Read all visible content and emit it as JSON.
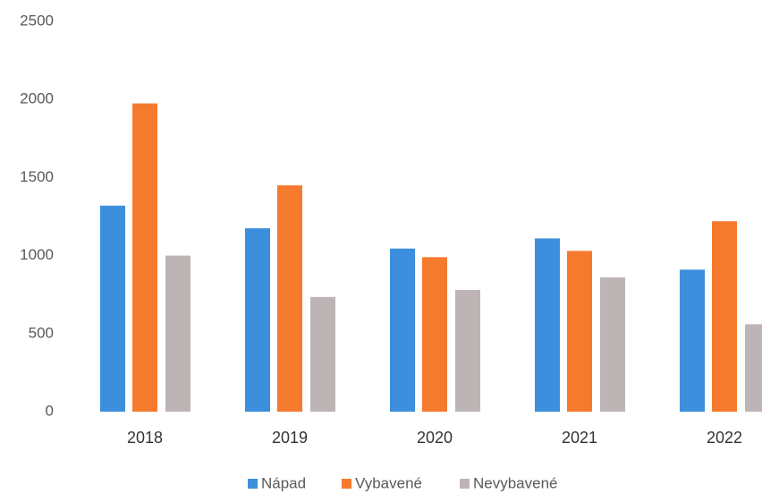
{
  "chart_data": {
    "type": "bar",
    "categories": [
      "2018",
      "2019",
      "2020",
      "2021",
      "2022"
    ],
    "series": [
      {
        "name": "Nápad",
        "color": "#3c8fdc",
        "values": [
          1320,
          1175,
          1045,
          1110,
          910
        ]
      },
      {
        "name": "Vybavené",
        "color": "#f57a2e",
        "values": [
          1975,
          1450,
          990,
          1030,
          1220
        ]
      },
      {
        "name": "Nevybavené",
        "color": "#bdb5b5",
        "values": [
          1000,
          735,
          780,
          860,
          560
        ]
      }
    ],
    "ylim": [
      0,
      2500
    ],
    "yticks": [
      0,
      500,
      1000,
      1500,
      2000,
      2500
    ],
    "grid": false
  }
}
